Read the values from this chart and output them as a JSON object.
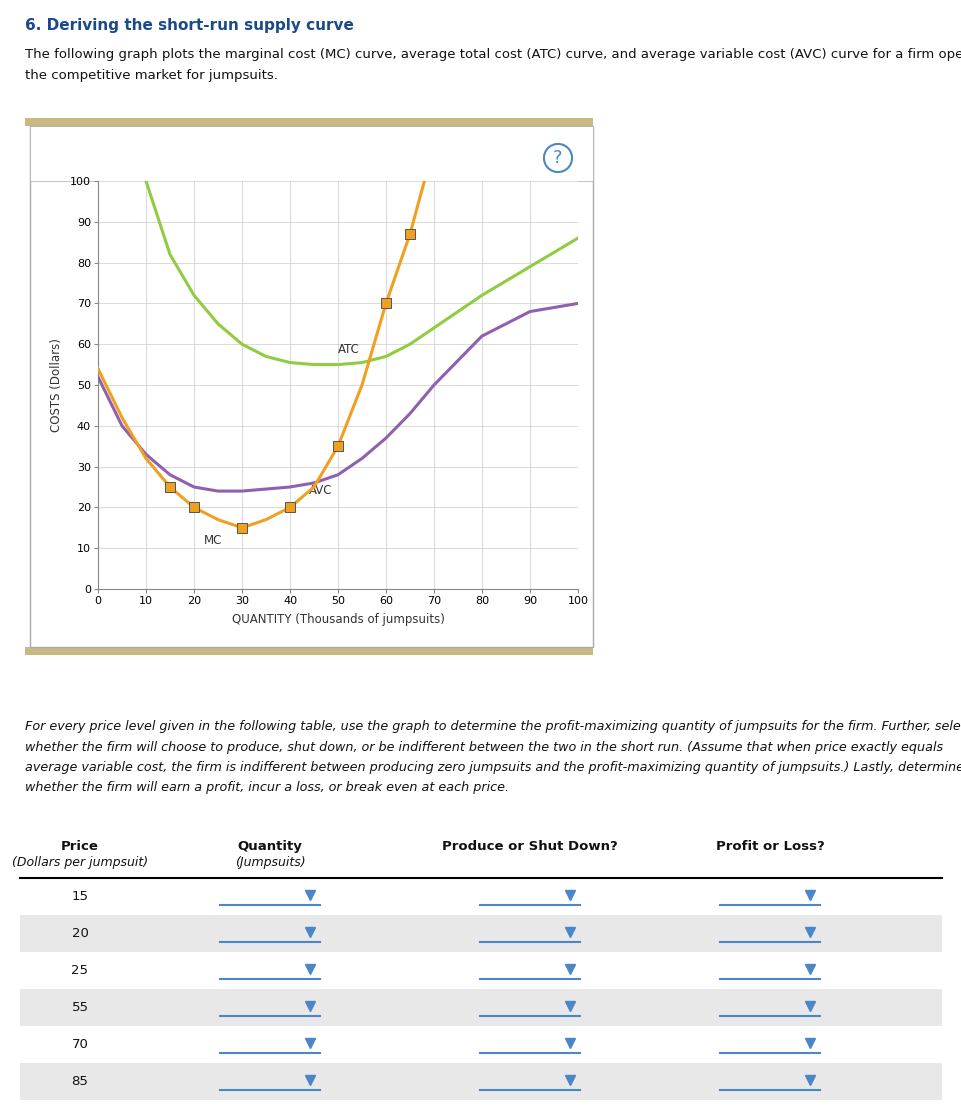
{
  "title": "6. Deriving the short-run supply curve",
  "description": "The following graph plots the marginal cost (MC) curve, average total cost (ATC) curve, and average variable cost (AVC) curve for a firm operating in\nthe competitive market for jumpsuits.",
  "graph_bg": "#ffffff",
  "outer_bg": "#ffffff",
  "question_mark_color": "#4a86c8",
  "xlabel": "QUANTITY (Thousands of jumpsuits)",
  "ylabel": "COSTS (Dollars)",
  "xlim": [
    0,
    100
  ],
  "ylim": [
    0,
    100
  ],
  "xticks": [
    0,
    10,
    20,
    30,
    40,
    50,
    60,
    70,
    80,
    90,
    100
  ],
  "yticks": [
    0,
    10,
    20,
    30,
    40,
    50,
    60,
    70,
    80,
    90,
    100
  ],
  "mc_color": "#f0a020",
  "atc_color": "#90cc40",
  "avc_color": "#9060b0",
  "mc_label": "MC",
  "atc_label": "ATC",
  "avc_label": "AVC",
  "mc_x": [
    0,
    5,
    10,
    15,
    20,
    25,
    30,
    35,
    40,
    45,
    50,
    55,
    60,
    65,
    68
  ],
  "mc_y": [
    54,
    42,
    32,
    25,
    20,
    17,
    15,
    17,
    20,
    25,
    35,
    50,
    70,
    87,
    100
  ],
  "atc_x": [
    10,
    15,
    20,
    25,
    30,
    35,
    40,
    45,
    50,
    55,
    60,
    65,
    70,
    80,
    90,
    100
  ],
  "atc_y": [
    100,
    82,
    72,
    65,
    60,
    57,
    55.5,
    55,
    55,
    55.5,
    57,
    60,
    64,
    72,
    79,
    86
  ],
  "avc_x": [
    0,
    5,
    10,
    15,
    20,
    25,
    30,
    35,
    40,
    45,
    50,
    55,
    60,
    65,
    70,
    80,
    90,
    100
  ],
  "avc_y": [
    52,
    40,
    33,
    28,
    25,
    24,
    24,
    24.5,
    25,
    26,
    28,
    32,
    37,
    43,
    50,
    62,
    68,
    70
  ],
  "mc_markers_x": [
    15,
    20,
    30,
    40,
    50,
    60,
    65
  ],
  "mc_markers_y": [
    25,
    20,
    15,
    20,
    35,
    70,
    87
  ],
  "paragraph_italic": "For every price level given in the following table, use the graph to determine the profit-maximizing quantity of jumpsuits for the firm. Further, select\nwhether the firm will choose to produce, shut down, or be indifferent between the two in the short run. (Assume that when price exactly equals\naverage variable cost, the firm is indifferent between producing zero jumpsuits and the profit-maximizing quantity of jumpsuits.) Lastly, determine\nwhether the firm will earn a profit, incur a loss, or break even at each price.",
  "table_prices": [
    15,
    20,
    25,
    55,
    70,
    85
  ],
  "table_header_price": "Price",
  "table_header_price_sub": "(Dollars per jumpsuit)",
  "table_header_qty": "Quantity",
  "table_header_qty_sub": "(Jumpsuits)",
  "table_header_produce": "Produce or Shut Down?",
  "table_header_profit": "Profit or Loss?",
  "row_bg_alt": "#e8e8e8",
  "row_bg_norm": "#ffffff",
  "dropdown_color": "#4a86c8",
  "gold_bar_color": "#c8b882",
  "grid_color": "#cccccc",
  "border_color": "#aaaaaa",
  "title_color": "#1a4a8a",
  "text_color": "#111111"
}
